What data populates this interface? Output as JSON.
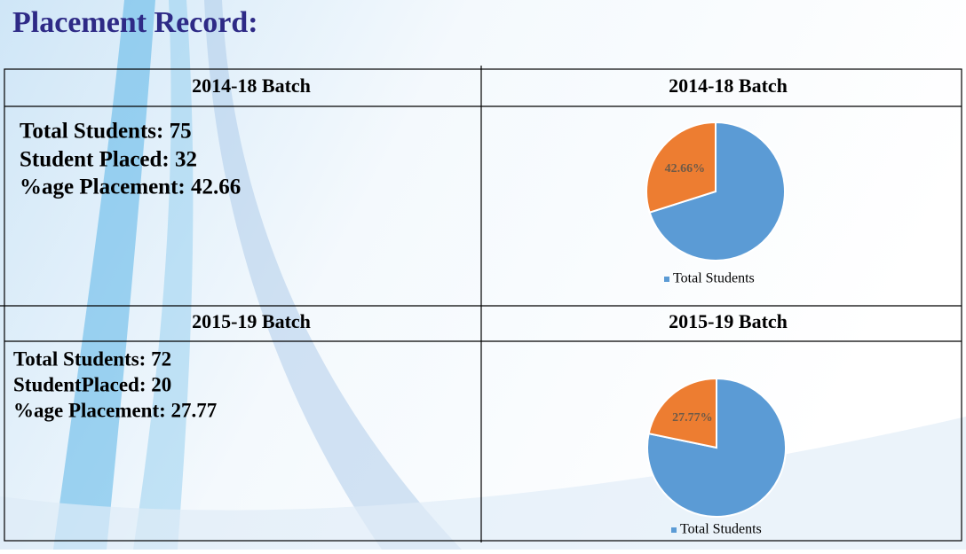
{
  "header": {
    "title": "Placement Record:"
  },
  "table": {
    "sections": [
      {
        "headings": [
          "2014-18 Batch",
          "2014-18 Batch"
        ],
        "lines": [
          "Total Students: 75",
          "Student Placed: 32",
          "%age Placement: 42.66"
        ]
      },
      {
        "headings": [
          "2015-19 Batch",
          "2015-19 Batch"
        ],
        "lines": [
          "Total Students: 72",
          "StudentPlaced: 20",
          "%age Placement: 27.77"
        ]
      }
    ]
  },
  "chart_data": [
    {
      "type": "pie",
      "categories": [
        "Total Students",
        null
      ],
      "values": [
        100,
        42.66
      ],
      "value_labels": [
        null,
        "42.66%"
      ],
      "colors": [
        "#5b9bd5",
        "#ed7d31"
      ]
    },
    {
      "type": "pie",
      "categories": [
        "Total Students",
        null
      ],
      "values": [
        100,
        27.77
      ],
      "value_labels": [
        null,
        "27.77%"
      ],
      "colors": [
        "#5b9bd5",
        "#ed7d31"
      ]
    }
  ]
}
